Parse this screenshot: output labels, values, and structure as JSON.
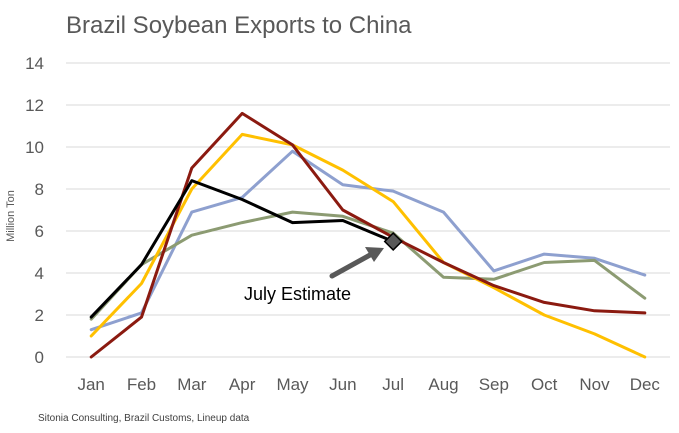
{
  "chart_data": {
    "type": "line",
    "title": "Brazil Soybean Exports to China",
    "ylabel": "Million Ton",
    "xlabel": "",
    "source": "Sitonia Consulting, Brazil Customs, Lineup data",
    "categories": [
      "Jan",
      "Feb",
      "Mar",
      "Apr",
      "May",
      "Jun",
      "Jul",
      "Aug",
      "Sep",
      "Oct",
      "Nov",
      "Dec"
    ],
    "ylim": [
      0,
      14
    ],
    "yticks": [
      "0",
      "2",
      "4",
      "6",
      "8",
      "10",
      "12",
      "14"
    ],
    "grid": true,
    "series": [
      {
        "color": "#8EA0CF",
        "values": [
          1.3,
          2.1,
          6.9,
          7.6,
          9.8,
          8.2,
          7.9,
          6.9,
          4.1,
          4.9,
          4.7,
          3.9
        ]
      },
      {
        "color": "#8C9B72",
        "values": [
          1.8,
          4.4,
          5.8,
          6.4,
          6.9,
          6.7,
          5.9,
          3.8,
          3.7,
          4.5,
          4.6,
          2.8
        ]
      },
      {
        "color": "#FFC000",
        "values": [
          1.0,
          3.5,
          8.0,
          10.6,
          10.1,
          8.9,
          7.4,
          4.5,
          3.3,
          2.0,
          1.1,
          0.0
        ]
      },
      {
        "color": "#8B1A10",
        "values": [
          0.0,
          1.9,
          9.0,
          11.6,
          10.1,
          7.0,
          5.7,
          4.5,
          3.4,
          2.6,
          2.2,
          2.1
        ]
      },
      {
        "color": "#000000",
        "values": [
          1.9,
          4.4,
          8.4,
          7.5,
          6.4,
          6.5,
          5.5,
          null,
          null,
          null,
          null,
          null
        ]
      }
    ],
    "annotation": {
      "text": "July Estimate",
      "category": "Jul",
      "value": 5.5
    }
  }
}
